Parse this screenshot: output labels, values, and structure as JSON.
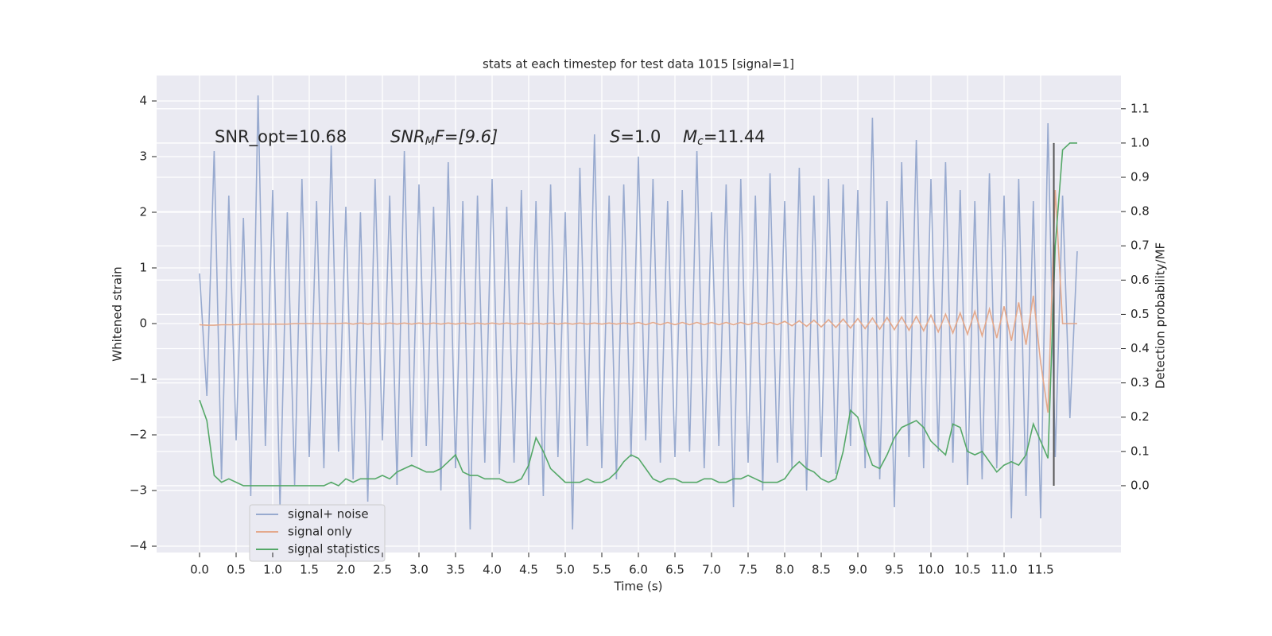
{
  "chart_data": {
    "type": "line",
    "title": "stats at each timestep for test data 1015 [signal=1]",
    "xlabel": "Time (s)",
    "ylabel": "Whitened strain",
    "y2label": "Detection probability/MF",
    "annotations": [
      [
        "SNR_opt=10.68"
      ],
      [
        "SNR",
        "M",
        "F=[9.6]"
      ],
      [
        "S",
        "=1.0"
      ],
      [
        "M",
        "c",
        "=11.44"
      ]
    ],
    "xlim": [
      -0.587,
      12.598
    ],
    "ylim": [
      -4.114,
      4.457
    ],
    "y2lim": [
      -0.195,
      1.197
    ],
    "xticks": [
      {
        "value": 0,
        "label": "0.0"
      },
      0.5,
      {
        "value": 1,
        "label": "1.0"
      },
      1.5,
      {
        "value": 2,
        "label": "2.0"
      },
      2.5,
      {
        "value": 3,
        "label": "3.0"
      },
      3.5,
      {
        "value": 4,
        "label": "4.0"
      },
      4.5,
      {
        "value": 5,
        "label": "5.0"
      },
      5.5,
      {
        "value": 6,
        "label": "6.0"
      },
      6.5,
      {
        "value": 7,
        "label": "7.0"
      },
      7.5,
      {
        "value": 8,
        "label": "8.0"
      },
      8.5,
      {
        "value": 9,
        "label": "9.0"
      },
      9.5,
      {
        "value": 10,
        "label": "10.0"
      },
      10.5,
      {
        "value": 11,
        "label": "11.0"
      },
      11.5
    ],
    "yticks": [
      {
        "value": -4,
        "label": "−4"
      },
      {
        "value": -3,
        "label": "−3"
      },
      {
        "value": -2,
        "label": "−2"
      },
      {
        "value": -1,
        "label": "−1"
      },
      0,
      1,
      2,
      3,
      4
    ],
    "y2ticks": [
      {
        "value": 0,
        "label": "0.0"
      },
      0.1,
      0.2,
      0.3,
      0.4,
      0.5,
      0.6,
      0.7,
      0.8,
      0.9,
      {
        "value": 1,
        "label": "1.0"
      },
      1.1
    ],
    "grid": true,
    "legend": "lower left",
    "x": [
      0,
      0.1,
      0.2,
      0.3,
      0.4,
      0.5,
      0.6,
      0.7,
      0.8,
      0.9,
      1,
      1.1,
      1.2,
      1.3,
      1.4,
      1.5,
      1.6,
      1.7,
      1.8,
      1.9,
      2,
      2.1,
      2.2,
      2.3,
      2.4,
      2.5,
      2.6,
      2.7,
      2.8,
      2.9,
      3,
      3.1,
      3.2,
      3.3,
      3.4,
      3.5,
      3.6,
      3.7,
      3.8,
      3.9,
      4,
      4.1,
      4.2,
      4.3,
      4.4,
      4.5,
      4.6,
      4.7,
      4.8,
      4.9,
      5,
      5.1,
      5.2,
      5.3,
      5.4,
      5.5,
      5.6,
      5.7,
      5.8,
      5.9,
      6,
      6.1,
      6.2,
      6.3,
      6.4,
      6.5,
      6.6,
      6.7,
      6.8,
      6.9,
      7,
      7.1,
      7.2,
      7.3,
      7.4,
      7.5,
      7.6,
      7.7,
      7.8,
      7.9,
      8,
      8.1,
      8.2,
      8.3,
      8.4,
      8.5,
      8.6,
      8.7,
      8.8,
      8.9,
      9,
      9.1,
      9.2,
      9.3,
      9.4,
      9.5,
      9.6,
      9.7,
      9.8,
      9.9,
      10,
      10.1,
      10.2,
      10.3,
      10.4,
      10.5,
      10.6,
      10.7,
      10.8,
      10.9,
      11,
      11.1,
      11.2,
      11.3,
      11.4,
      11.5,
      11.6,
      11.7,
      11.8,
      11.9,
      12
    ],
    "series": [
      {
        "name": "signal+ noise",
        "color": "#98aacf",
        "values": [
          0.9,
          -1.3,
          3.1,
          -2.8,
          2.3,
          -2.1,
          1.9,
          -3.1,
          4.1,
          -2.2,
          2.4,
          -3.3,
          2.0,
          -2.9,
          2.6,
          -2.4,
          2.2,
          -2.6,
          3.2,
          -2.3,
          2.1,
          -2.8,
          2.0,
          -3.2,
          2.6,
          -2.1,
          2.3,
          -2.9,
          3.1,
          -2.4,
          2.5,
          -2.2,
          2.1,
          -3.0,
          2.9,
          -2.6,
          2.2,
          -3.7,
          2.3,
          -2.5,
          2.6,
          -2.7,
          2.1,
          -2.5,
          2.4,
          -2.9,
          2.2,
          -3.1,
          2.5,
          -2.4,
          2.0,
          -3.7,
          2.8,
          -2.2,
          3.4,
          -2.6,
          2.3,
          -2.8,
          2.5,
          -2.4,
          3.0,
          -2.1,
          2.6,
          -2.5,
          2.2,
          -2.4,
          2.4,
          -2.3,
          3.1,
          -2.6,
          2.0,
          -2.2,
          2.5,
          -3.3,
          2.6,
          -2.5,
          2.3,
          -3.0,
          2.7,
          -2.5,
          2.2,
          -2.6,
          2.8,
          -3.0,
          2.3,
          -2.4,
          2.6,
          -2.7,
          2.5,
          -2.2,
          2.4,
          -2.6,
          3.7,
          -2.8,
          2.2,
          -3.3,
          2.9,
          -2.4,
          3.3,
          -2.6,
          2.6,
          -2.3,
          2.9,
          -2.5,
          2.4,
          -2.9,
          2.2,
          -2.8,
          2.7,
          -2.6,
          2.3,
          -3.5,
          2.6,
          -3.1,
          2.2,
          -3.5,
          3.6,
          -2.4,
          2.3,
          -1.7,
          1.3
        ]
      },
      {
        "name": "signal only",
        "color": "#e4a98c",
        "values": [
          -0.02,
          -0.03,
          -0.03,
          -0.02,
          -0.02,
          -0.02,
          -0.01,
          -0.01,
          -0.01,
          -0.01,
          -0.01,
          -0.01,
          -0.01,
          0.0,
          0.0,
          0.0,
          0.0,
          0.0,
          0.0,
          0.0,
          0.01,
          -0.01,
          0.01,
          -0.01,
          0.01,
          -0.01,
          0.01,
          -0.01,
          0.01,
          -0.01,
          0.01,
          -0.01,
          0.01,
          -0.01,
          0.01,
          -0.01,
          0.01,
          -0.01,
          0.01,
          -0.01,
          0.01,
          -0.01,
          0.01,
          -0.01,
          0.01,
          -0.01,
          0.01,
          -0.01,
          0.01,
          -0.01,
          0.01,
          -0.01,
          0.01,
          -0.01,
          0.01,
          -0.01,
          0.01,
          -0.01,
          0.01,
          -0.01,
          0.02,
          -0.02,
          0.02,
          -0.02,
          0.02,
          -0.02,
          0.02,
          -0.02,
          0.02,
          -0.02,
          0.02,
          -0.02,
          0.02,
          -0.02,
          0.02,
          -0.02,
          0.02,
          -0.02,
          0.02,
          -0.02,
          0.04,
          -0.04,
          0.05,
          -0.05,
          0.06,
          -0.06,
          0.07,
          -0.07,
          0.08,
          -0.08,
          0.09,
          -0.09,
          0.1,
          -0.1,
          0.11,
          -0.11,
          0.12,
          -0.12,
          0.13,
          -0.13,
          0.15,
          -0.15,
          0.17,
          -0.17,
          0.19,
          -0.19,
          0.22,
          -0.22,
          0.26,
          -0.26,
          0.31,
          -0.31,
          0.38,
          -0.38,
          0.5,
          -0.7,
          -1.6,
          2.4,
          0.0,
          0.0,
          0.0
        ]
      },
      {
        "name": "signal statistics",
        "color": "#55a868",
        "axis": "y2",
        "values": [
          0.25,
          0.19,
          0.03,
          0.01,
          0.02,
          0.01,
          0.0,
          0.0,
          0.0,
          0.0,
          0.0,
          0.0,
          0.0,
          0.0,
          0.0,
          0.0,
          0.0,
          0.0,
          0.01,
          0.0,
          0.02,
          0.01,
          0.02,
          0.02,
          0.02,
          0.03,
          0.02,
          0.04,
          0.05,
          0.06,
          0.05,
          0.04,
          0.04,
          0.05,
          0.07,
          0.09,
          0.04,
          0.03,
          0.03,
          0.02,
          0.02,
          0.02,
          0.01,
          0.01,
          0.02,
          0.06,
          0.14,
          0.1,
          0.05,
          0.03,
          0.01,
          0.01,
          0.01,
          0.02,
          0.01,
          0.01,
          0.02,
          0.04,
          0.07,
          0.09,
          0.08,
          0.05,
          0.02,
          0.01,
          0.02,
          0.02,
          0.01,
          0.01,
          0.01,
          0.02,
          0.02,
          0.01,
          0.01,
          0.02,
          0.02,
          0.03,
          0.02,
          0.01,
          0.01,
          0.01,
          0.02,
          0.05,
          0.07,
          0.05,
          0.04,
          0.02,
          0.01,
          0.02,
          0.1,
          0.22,
          0.2,
          0.12,
          0.06,
          0.05,
          0.09,
          0.14,
          0.17,
          0.18,
          0.19,
          0.17,
          0.13,
          0.11,
          0.09,
          0.18,
          0.17,
          0.1,
          0.09,
          0.1,
          0.07,
          0.04,
          0.06,
          0.07,
          0.06,
          0.09,
          0.18,
          0.13,
          0.08,
          0.7,
          0.98,
          1.0,
          1.0
        ]
      }
    ],
    "vline": {
      "x": 11.68,
      "color": "#555555",
      "y2": [
        0,
        1
      ]
    }
  }
}
